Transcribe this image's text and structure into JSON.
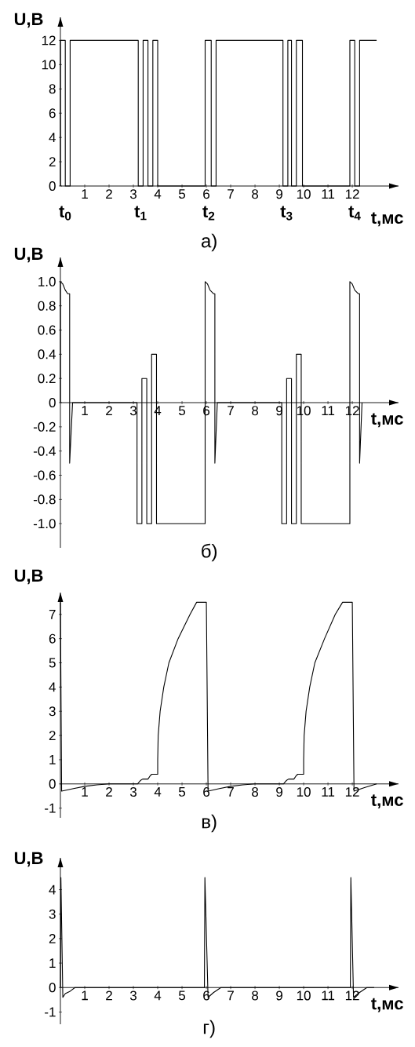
{
  "chart_data": [
    {
      "type": "line",
      "title": "а)",
      "xlabel": "t,мс",
      "ylabel": "U,В",
      "color": "#000000",
      "marker": "none",
      "line_style": "solid",
      "xlim": [
        0,
        13.9
      ],
      "ylim": [
        0,
        13.9
      ],
      "xticks": [
        1,
        2,
        3,
        4,
        5,
        6,
        7,
        8,
        9,
        10,
        11,
        12
      ],
      "yticks": [
        0,
        2,
        4,
        6,
        8,
        10,
        12
      ],
      "x": [
        0,
        0,
        0.2,
        0.2,
        0.4,
        0.4,
        3.2,
        3.2,
        3.4,
        3.4,
        3.6,
        3.6,
        3.8,
        3.8,
        4.0,
        4.0,
        5.95,
        5.95,
        6.2,
        6.2,
        6.4,
        6.4,
        9.15,
        9.15,
        9.35,
        9.35,
        9.5,
        9.5,
        9.7,
        9.7,
        9.95,
        9.95,
        11.9,
        11.9,
        12.1,
        12.1,
        12.3,
        12.3,
        13.0
      ],
      "values": [
        0,
        12,
        12,
        0,
        0,
        12,
        12,
        0,
        0,
        12,
        12,
        0,
        0,
        12,
        12,
        0,
        0,
        12,
        12,
        0,
        0,
        12,
        12,
        0,
        0,
        12,
        12,
        0,
        0,
        12,
        12,
        0,
        0,
        12,
        12,
        0,
        0,
        12,
        12
      ],
      "annotations": [
        "t$_{0}$",
        "t$_{1}$",
        "t$_{2}$",
        "t$_{3}$",
        "t$_{4}$"
      ]
    },
    {
      "type": "line",
      "title": "б)",
      "xlabel": "t,мс",
      "ylabel": "U,В",
      "color": "#000000",
      "marker": "none",
      "line_style": "solid",
      "xlim": [
        0,
        13.9
      ],
      "ylim": [
        -1.2,
        1.2
      ],
      "xticks": [
        1,
        2,
        3,
        4,
        5,
        6,
        7,
        8,
        9,
        10,
        11,
        12
      ],
      "yticks": [
        {
          "value": 1.0,
          "label": "1.0"
        },
        {
          "value": 0.8,
          "label": "0.8"
        },
        {
          "value": 0.6,
          "label": "0.6"
        },
        {
          "value": 0.4,
          "label": "0.4"
        },
        {
          "value": 0.2,
          "label": "0.2"
        },
        0,
        {
          "value": -0.2,
          "label": "-0.2"
        },
        {
          "value": -0.4,
          "label": "-0.4"
        },
        {
          "value": -0.6,
          "label": "-0.6"
        },
        {
          "value": -0.8,
          "label": "-0.8"
        },
        {
          "value": -1.0,
          "label": "-1.0"
        }
      ],
      "x": [
        0,
        0,
        0.1,
        0.2,
        0.3,
        0.38,
        0.38,
        0.5,
        3.15,
        3.15,
        3.35,
        3.35,
        3.55,
        3.55,
        3.75,
        3.75,
        3.95,
        3.95,
        5.95,
        5.95,
        6.05,
        6.15,
        6.3,
        6.35,
        6.35,
        6.45,
        9.1,
        9.1,
        9.3,
        9.3,
        9.5,
        9.5,
        9.7,
        9.7,
        9.9,
        9.9,
        11.9,
        11.9,
        12.0,
        12.1,
        12.25,
        12.3,
        12.3,
        12.4
      ],
      "values": [
        0,
        1.0,
        0.98,
        0.93,
        0.9,
        0.9,
        -0.5,
        0,
        0,
        -1.0,
        -1.0,
        0.2,
        0.2,
        -1.0,
        -1.0,
        0.4,
        0.4,
        -1.0,
        -1.0,
        1.0,
        0.98,
        0.93,
        0.9,
        0.9,
        -0.5,
        0,
        0,
        -1.0,
        -1.0,
        0.2,
        0.2,
        -1.0,
        -1.0,
        0.4,
        0.4,
        -1.0,
        -1.0,
        1.0,
        0.98,
        0.93,
        0.9,
        0.9,
        -0.5,
        0
      ]
    },
    {
      "type": "line",
      "title": "в)",
      "xlabel": "t,мс",
      "ylabel": "U,В",
      "color": "#000000",
      "marker": "none",
      "line_style": "solid",
      "xlim": [
        0,
        13.9
      ],
      "ylim": [
        -1.4,
        7.9
      ],
      "xticks": [
        1,
        2,
        3,
        4,
        5,
        6,
        7,
        8,
        9,
        10,
        11,
        12
      ],
      "yticks": [
        -1,
        0,
        1,
        2,
        3,
        4,
        5,
        6,
        7
      ],
      "x": [
        0,
        0.05,
        0.5,
        1,
        1.5,
        2,
        3.17,
        3.3,
        3.38,
        3.6,
        3.7,
        3.76,
        4.0,
        4.0,
        4.02,
        4.1,
        4.25,
        4.46,
        4.84,
        5.33,
        5.6,
        6.0,
        6.07,
        6.5,
        7,
        7.5,
        8,
        9.17,
        9.3,
        9.38,
        9.6,
        9.7,
        9.76,
        10.0,
        10.0,
        10.02,
        10.1,
        10.25,
        10.46,
        10.86,
        11.3,
        11.6,
        12.0,
        12.07,
        12.5,
        13.0
      ],
      "values": [
        7.5,
        -0.3,
        -0.2,
        -0.1,
        -0.04,
        0,
        0,
        0.15,
        0.2,
        0.2,
        0.35,
        0.4,
        0.4,
        1.0,
        2,
        3,
        4,
        5,
        6,
        7,
        7.5,
        7.5,
        -0.3,
        -0.2,
        -0.1,
        -0.04,
        0,
        0,
        0.15,
        0.2,
        0.2,
        0.35,
        0.4,
        0.4,
        1.0,
        2,
        3,
        4,
        5,
        6,
        7,
        7.5,
        7.5,
        -0.3,
        -0.15,
        0
      ]
    },
    {
      "type": "line",
      "title": "г)",
      "xlabel": "t,мс",
      "ylabel": "U,В",
      "color": "#000000",
      "marker": "none",
      "line_style": "solid",
      "xlim": [
        0,
        13.9
      ],
      "ylim": [
        -1.5,
        5.3
      ],
      "xticks": [
        1,
        2,
        3,
        4,
        5,
        6,
        7,
        8,
        9,
        10,
        11,
        12
      ],
      "yticks": [
        -1,
        0,
        1,
        2,
        3,
        4
      ],
      "x": [
        0,
        0.02,
        0.1,
        0.2,
        0.4,
        0.6,
        5.92,
        5.94,
        6.07,
        6.3,
        6.6,
        11.92,
        11.94,
        12.05,
        12.3,
        12.6,
        12.9
      ],
      "values": [
        0,
        4.5,
        -0.4,
        -0.25,
        -0.15,
        0,
        0,
        4.5,
        -0.4,
        -0.2,
        0,
        0,
        4.5,
        -0.4,
        -0.2,
        0,
        0
      ]
    }
  ]
}
